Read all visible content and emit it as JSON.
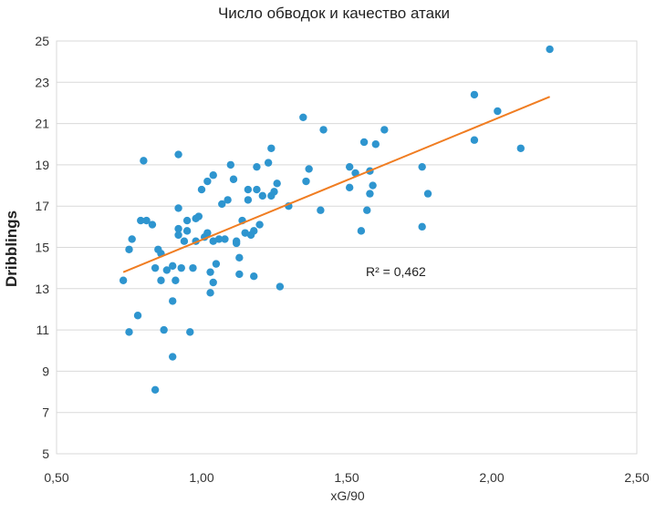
{
  "chart_data": {
    "type": "scatter",
    "title": "Число обводок и качество атаки",
    "xlabel": "xG/90",
    "ylabel": "Dribblings",
    "xlim": [
      0.5,
      2.5
    ],
    "ylim": [
      5,
      25
    ],
    "x_ticks": [
      "0,50",
      "1,00",
      "1,50",
      "2,00",
      "2,50"
    ],
    "y_ticks": [
      "5",
      "7",
      "9",
      "11",
      "13",
      "15",
      "17",
      "19",
      "21",
      "23",
      "25"
    ],
    "grid": "horizontal",
    "point_color": "#2e95cf",
    "trendline": {
      "color": "#f07d22",
      "x": [
        0.73,
        2.2
      ],
      "y": [
        13.8,
        22.3
      ],
      "label": "R² = 0,462"
    },
    "points": [
      [
        0.73,
        13.4
      ],
      [
        0.75,
        10.9
      ],
      [
        0.75,
        14.9
      ],
      [
        0.76,
        15.4
      ],
      [
        0.78,
        11.7
      ],
      [
        0.79,
        16.3
      ],
      [
        0.8,
        19.2
      ],
      [
        0.81,
        16.3
      ],
      [
        0.83,
        16.1
      ],
      [
        0.84,
        8.1
      ],
      [
        0.84,
        14.0
      ],
      [
        0.85,
        14.9
      ],
      [
        0.86,
        13.4
      ],
      [
        0.86,
        14.7
      ],
      [
        0.87,
        11.0
      ],
      [
        0.88,
        13.9
      ],
      [
        0.9,
        9.7
      ],
      [
        0.9,
        12.4
      ],
      [
        0.9,
        14.1
      ],
      [
        0.91,
        13.4
      ],
      [
        0.92,
        15.6
      ],
      [
        0.92,
        15.9
      ],
      [
        0.92,
        16.9
      ],
      [
        0.92,
        19.5
      ],
      [
        0.93,
        14.0
      ],
      [
        0.94,
        15.3
      ],
      [
        0.95,
        15.8
      ],
      [
        0.95,
        16.3
      ],
      [
        0.96,
        10.9
      ],
      [
        0.97,
        14.0
      ],
      [
        0.98,
        15.3
      ],
      [
        0.98,
        16.4
      ],
      [
        0.99,
        16.5
      ],
      [
        1.0,
        17.8
      ],
      [
        1.01,
        15.5
      ],
      [
        1.02,
        15.7
      ],
      [
        1.02,
        18.2
      ],
      [
        1.03,
        12.8
      ],
      [
        1.03,
        13.8
      ],
      [
        1.04,
        13.3
      ],
      [
        1.04,
        15.3
      ],
      [
        1.04,
        18.5
      ],
      [
        1.05,
        14.2
      ],
      [
        1.06,
        15.4
      ],
      [
        1.07,
        17.1
      ],
      [
        1.08,
        15.4
      ],
      [
        1.09,
        17.3
      ],
      [
        1.1,
        19.0
      ],
      [
        1.11,
        18.3
      ],
      [
        1.12,
        15.2
      ],
      [
        1.12,
        15.3
      ],
      [
        1.13,
        13.7
      ],
      [
        1.13,
        14.5
      ],
      [
        1.14,
        16.3
      ],
      [
        1.15,
        15.7
      ],
      [
        1.16,
        17.3
      ],
      [
        1.16,
        17.8
      ],
      [
        1.17,
        15.6
      ],
      [
        1.18,
        13.6
      ],
      [
        1.18,
        15.8
      ],
      [
        1.19,
        17.8
      ],
      [
        1.19,
        18.9
      ],
      [
        1.2,
        16.1
      ],
      [
        1.21,
        17.5
      ],
      [
        1.23,
        19.1
      ],
      [
        1.24,
        17.5
      ],
      [
        1.24,
        19.8
      ],
      [
        1.25,
        17.7
      ],
      [
        1.26,
        18.1
      ],
      [
        1.27,
        13.1
      ],
      [
        1.3,
        17.0
      ],
      [
        1.35,
        21.3
      ],
      [
        1.36,
        18.2
      ],
      [
        1.37,
        18.8
      ],
      [
        1.41,
        16.8
      ],
      [
        1.42,
        20.7
      ],
      [
        1.51,
        17.9
      ],
      [
        1.51,
        18.9
      ],
      [
        1.53,
        18.6
      ],
      [
        1.55,
        15.8
      ],
      [
        1.56,
        20.1
      ],
      [
        1.57,
        16.8
      ],
      [
        1.58,
        17.6
      ],
      [
        1.58,
        18.7
      ],
      [
        1.59,
        18.0
      ],
      [
        1.6,
        20.0
      ],
      [
        1.63,
        20.7
      ],
      [
        1.76,
        16.0
      ],
      [
        1.76,
        18.9
      ],
      [
        1.78,
        17.6
      ],
      [
        1.94,
        22.4
      ],
      [
        1.94,
        20.2
      ],
      [
        2.02,
        21.6
      ],
      [
        2.1,
        19.8
      ],
      [
        2.2,
        24.6
      ]
    ]
  }
}
